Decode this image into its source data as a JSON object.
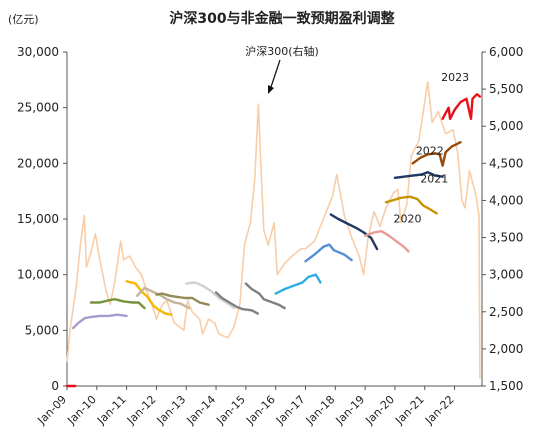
{
  "chart_data": {
    "type": "line",
    "title": "沪深300与非金融一致预期盈利调整",
    "unit_label": "(亿元)",
    "annotation": "沪深300(右轴)",
    "y_left": {
      "min": 0,
      "max": 30000,
      "ticks": [
        0,
        5000,
        10000,
        15000,
        20000,
        25000,
        30000
      ],
      "tick_labels": [
        "0",
        "5,000",
        "10,000",
        "15,000",
        "20,000",
        "25,000",
        "30,000"
      ]
    },
    "y_right": {
      "min": 1500,
      "max": 6000,
      "ticks": [
        1500,
        2000,
        2500,
        3000,
        3500,
        4000,
        4500,
        5000,
        5500,
        6000
      ],
      "tick_labels": [
        "1,500",
        "2,000",
        "2,500",
        "3,000",
        "3,500",
        "4,000",
        "4,500",
        "5,000",
        "5,500",
        "6,000"
      ]
    },
    "x_axis": {
      "start": 2009.0,
      "end": 2022.92,
      "ticks": [
        2009,
        2010,
        2011,
        2012,
        2013,
        2014,
        2015,
        2016,
        2017,
        2018,
        2019,
        2020,
        2021,
        2022
      ],
      "tick_labels": [
        "Jan-09",
        "Jan-10",
        "Jan-11",
        "Jan-12",
        "Jan-13",
        "Jan-14",
        "Jan-15",
        "Jan-16",
        "Jan-17",
        "Jan-18",
        "Jan-19",
        "Jan-20",
        "Jan-21",
        "Jan-22"
      ]
    },
    "csi300": {
      "axis": "right",
      "color": "#f8cda8",
      "points": [
        [
          2009.0,
          1820
        ],
        [
          2009.1,
          2250
        ],
        [
          2009.3,
          2800
        ],
        [
          2009.45,
          3400
        ],
        [
          2009.58,
          3800
        ],
        [
          2009.65,
          3100
        ],
        [
          2009.8,
          3300
        ],
        [
          2009.95,
          3550
        ],
        [
          2010.1,
          3200
        ],
        [
          2010.3,
          2800
        ],
        [
          2010.45,
          2600
        ],
        [
          2010.6,
          2900
        ],
        [
          2010.8,
          3450
        ],
        [
          2010.9,
          3200
        ],
        [
          2011.1,
          3250
        ],
        [
          2011.3,
          3100
        ],
        [
          2011.5,
          3000
        ],
        [
          2011.7,
          2750
        ],
        [
          2011.85,
          2600
        ],
        [
          2012.0,
          2400
        ],
        [
          2012.2,
          2600
        ],
        [
          2012.35,
          2650
        ],
        [
          2012.6,
          2350
        ],
        [
          2012.92,
          2250
        ],
        [
          2013.05,
          2650
        ],
        [
          2013.2,
          2500
        ],
        [
          2013.45,
          2400
        ],
        [
          2013.55,
          2200
        ],
        [
          2013.75,
          2400
        ],
        [
          2013.95,
          2350
        ],
        [
          2014.1,
          2200
        ],
        [
          2014.4,
          2150
        ],
        [
          2014.6,
          2300
        ],
        [
          2014.8,
          2600
        ],
        [
          2014.95,
          3400
        ],
        [
          2015.15,
          3700
        ],
        [
          2015.3,
          4300
        ],
        [
          2015.42,
          5300
        ],
        [
          2015.5,
          4500
        ],
        [
          2015.6,
          3600
        ],
        [
          2015.75,
          3400
        ],
        [
          2015.95,
          3700
        ],
        [
          2016.05,
          3000
        ],
        [
          2016.3,
          3150
        ],
        [
          2016.55,
          3250
        ],
        [
          2016.85,
          3350
        ],
        [
          2017.0,
          3350
        ],
        [
          2017.3,
          3450
        ],
        [
          2017.6,
          3750
        ],
        [
          2017.9,
          4050
        ],
        [
          2018.05,
          4350
        ],
        [
          2018.3,
          3800
        ],
        [
          2018.55,
          3500
        ],
        [
          2018.8,
          3250
        ],
        [
          2018.95,
          3000
        ],
        [
          2019.1,
          3500
        ],
        [
          2019.3,
          3850
        ],
        [
          2019.5,
          3650
        ],
        [
          2019.7,
          3900
        ],
        [
          2019.95,
          4100
        ],
        [
          2020.1,
          4150
        ],
        [
          2020.2,
          3700
        ],
        [
          2020.4,
          3950
        ],
        [
          2020.55,
          4600
        ],
        [
          2020.8,
          4800
        ],
        [
          2020.95,
          5200
        ],
        [
          2021.1,
          5600
        ],
        [
          2021.25,
          5050
        ],
        [
          2021.45,
          5200
        ],
        [
          2021.7,
          4900
        ],
        [
          2021.95,
          4950
        ],
        [
          2022.1,
          4650
        ],
        [
          2022.25,
          4000
        ],
        [
          2022.35,
          3900
        ],
        [
          2022.5,
          4400
        ],
        [
          2022.7,
          4100
        ],
        [
          2022.82,
          3800
        ],
        [
          2022.85,
          1600
        ]
      ]
    },
    "revisions": [
      {
        "color": "#a79bd0",
        "points": [
          [
            2009.2,
            5200
          ],
          [
            2009.4,
            5700
          ],
          [
            2009.6,
            6100
          ],
          [
            2009.8,
            6200
          ],
          [
            2010.1,
            6300
          ],
          [
            2010.4,
            6300
          ],
          [
            2010.7,
            6400
          ],
          [
            2011.0,
            6300
          ]
        ]
      },
      {
        "color": "#77933c",
        "points": [
          [
            2009.8,
            7500
          ],
          [
            2010.1,
            7500
          ],
          [
            2010.4,
            7700
          ],
          [
            2010.6,
            7800
          ],
          [
            2010.9,
            7600
          ],
          [
            2011.2,
            7500
          ],
          [
            2011.4,
            7500
          ],
          [
            2011.6,
            7000
          ]
        ]
      },
      {
        "color": "#f5b700",
        "points": [
          [
            2011.0,
            9400
          ],
          [
            2011.3,
            9200
          ],
          [
            2011.5,
            8500
          ],
          [
            2011.7,
            8000
          ],
          [
            2011.9,
            7200
          ],
          [
            2012.1,
            6800
          ],
          [
            2012.3,
            6500
          ],
          [
            2012.5,
            6400
          ]
        ]
      },
      {
        "color": "#c4b49a",
        "points": [
          [
            2011.35,
            8100
          ],
          [
            2011.6,
            8800
          ],
          [
            2011.85,
            8500
          ],
          [
            2012.1,
            8200
          ],
          [
            2012.35,
            7800
          ],
          [
            2012.6,
            7500
          ],
          [
            2012.8,
            7400
          ],
          [
            2013.1,
            7000
          ]
        ]
      },
      {
        "color": "#948a54",
        "points": [
          [
            2012.0,
            8200
          ],
          [
            2012.2,
            8300
          ],
          [
            2012.45,
            8100
          ],
          [
            2012.7,
            8000
          ],
          [
            2012.95,
            7900
          ],
          [
            2013.2,
            7900
          ],
          [
            2013.45,
            7500
          ],
          [
            2013.75,
            7300
          ]
        ]
      },
      {
        "color": "#d0d0d0",
        "points": [
          [
            2013.0,
            9200
          ],
          [
            2013.3,
            9300
          ],
          [
            2013.55,
            9000
          ],
          [
            2013.85,
            8500
          ],
          [
            2014.1,
            7900
          ],
          [
            2014.4,
            7400
          ],
          [
            2014.6,
            7000
          ]
        ]
      },
      {
        "color": "#808080",
        "points": [
          [
            2014.0,
            8400
          ],
          [
            2014.2,
            7900
          ],
          [
            2014.45,
            7500
          ],
          [
            2014.7,
            7100
          ],
          [
            2014.9,
            6900
          ],
          [
            2015.2,
            6800
          ],
          [
            2015.4,
            6500
          ]
        ]
      },
      {
        "color": "#7f7f7f",
        "points": [
          [
            2015.0,
            9200
          ],
          [
            2015.2,
            8700
          ],
          [
            2015.45,
            8300
          ],
          [
            2015.6,
            7800
          ],
          [
            2015.8,
            7600
          ],
          [
            2016.1,
            7300
          ],
          [
            2016.3,
            7000
          ]
        ]
      },
      {
        "color": "#2eaee2",
        "points": [
          [
            2016.0,
            8300
          ],
          [
            2016.3,
            8700
          ],
          [
            2016.6,
            9000
          ],
          [
            2016.9,
            9300
          ],
          [
            2017.1,
            9800
          ],
          [
            2017.35,
            10000
          ],
          [
            2017.5,
            9300
          ]
        ]
      },
      {
        "color": "#558ed5",
        "points": [
          [
            2017.0,
            11200
          ],
          [
            2017.3,
            11800
          ],
          [
            2017.6,
            12500
          ],
          [
            2017.8,
            12700
          ],
          [
            2017.95,
            12200
          ],
          [
            2018.3,
            11800
          ],
          [
            2018.55,
            11300
          ]
        ]
      },
      {
        "color": "#1f3864",
        "points": [
          [
            2017.85,
            15400
          ],
          [
            2018.1,
            15000
          ],
          [
            2018.4,
            14600
          ],
          [
            2018.7,
            14200
          ],
          [
            2018.95,
            13800
          ],
          [
            2019.2,
            13300
          ],
          [
            2019.4,
            12300
          ]
        ]
      },
      {
        "color": "#ea9999",
        "points": [
          [
            2019.0,
            13500
          ],
          [
            2019.3,
            13800
          ],
          [
            2019.55,
            13900
          ],
          [
            2019.8,
            13500
          ],
          [
            2020.1,
            12900
          ],
          [
            2020.3,
            12500
          ],
          [
            2020.45,
            12100
          ]
        ]
      },
      {
        "color": "#c59400",
        "points": [
          [
            2019.7,
            16500
          ],
          [
            2019.95,
            16700
          ],
          [
            2020.2,
            16900
          ],
          [
            2020.5,
            17000
          ],
          [
            2020.75,
            16800
          ],
          [
            2020.95,
            16200
          ],
          [
            2021.1,
            16000
          ],
          [
            2021.4,
            15500
          ]
        ]
      },
      {
        "color": "#1f3864",
        "points": [
          [
            2020.0,
            18700
          ],
          [
            2020.3,
            18800
          ],
          [
            2020.6,
            18900
          ],
          [
            2020.9,
            19000
          ],
          [
            2021.1,
            19200
          ],
          [
            2021.35,
            18900
          ],
          [
            2021.6,
            18800
          ]
        ]
      },
      {
        "color": "#984807",
        "points": [
          [
            2020.6,
            20000
          ],
          [
            2020.85,
            20500
          ],
          [
            2021.1,
            20800
          ],
          [
            2021.35,
            20900
          ],
          [
            2021.5,
            20800
          ],
          [
            2021.6,
            19800
          ],
          [
            2021.7,
            21000
          ],
          [
            2021.9,
            21500
          ],
          [
            2022.05,
            21700
          ],
          [
            2022.2,
            21900
          ]
        ]
      },
      {
        "color": "#e8101a",
        "points": [
          [
            2021.6,
            24000
          ],
          [
            2021.7,
            24500
          ],
          [
            2021.8,
            25000
          ],
          [
            2021.85,
            24000
          ],
          [
            2022.0,
            24800
          ],
          [
            2022.2,
            25500
          ],
          [
            2022.4,
            25800
          ],
          [
            2022.55,
            24000
          ],
          [
            2022.6,
            25800
          ],
          [
            2022.75,
            26200
          ],
          [
            2022.85,
            26000
          ]
        ]
      },
      {
        "color": "#e8101a",
        "points": [
          [
            2009.0,
            0
          ],
          [
            2009.28,
            0
          ]
        ]
      }
    ],
    "year_labels": [
      {
        "label": "2020",
        "x": 2019.95,
        "y": 14700
      },
      {
        "label": "2021",
        "x": 2020.85,
        "y": 18300
      },
      {
        "label": "2022",
        "x": 2020.7,
        "y": 20800
      },
      {
        "label": "2023",
        "x": 2021.55,
        "y": 27400
      }
    ]
  }
}
